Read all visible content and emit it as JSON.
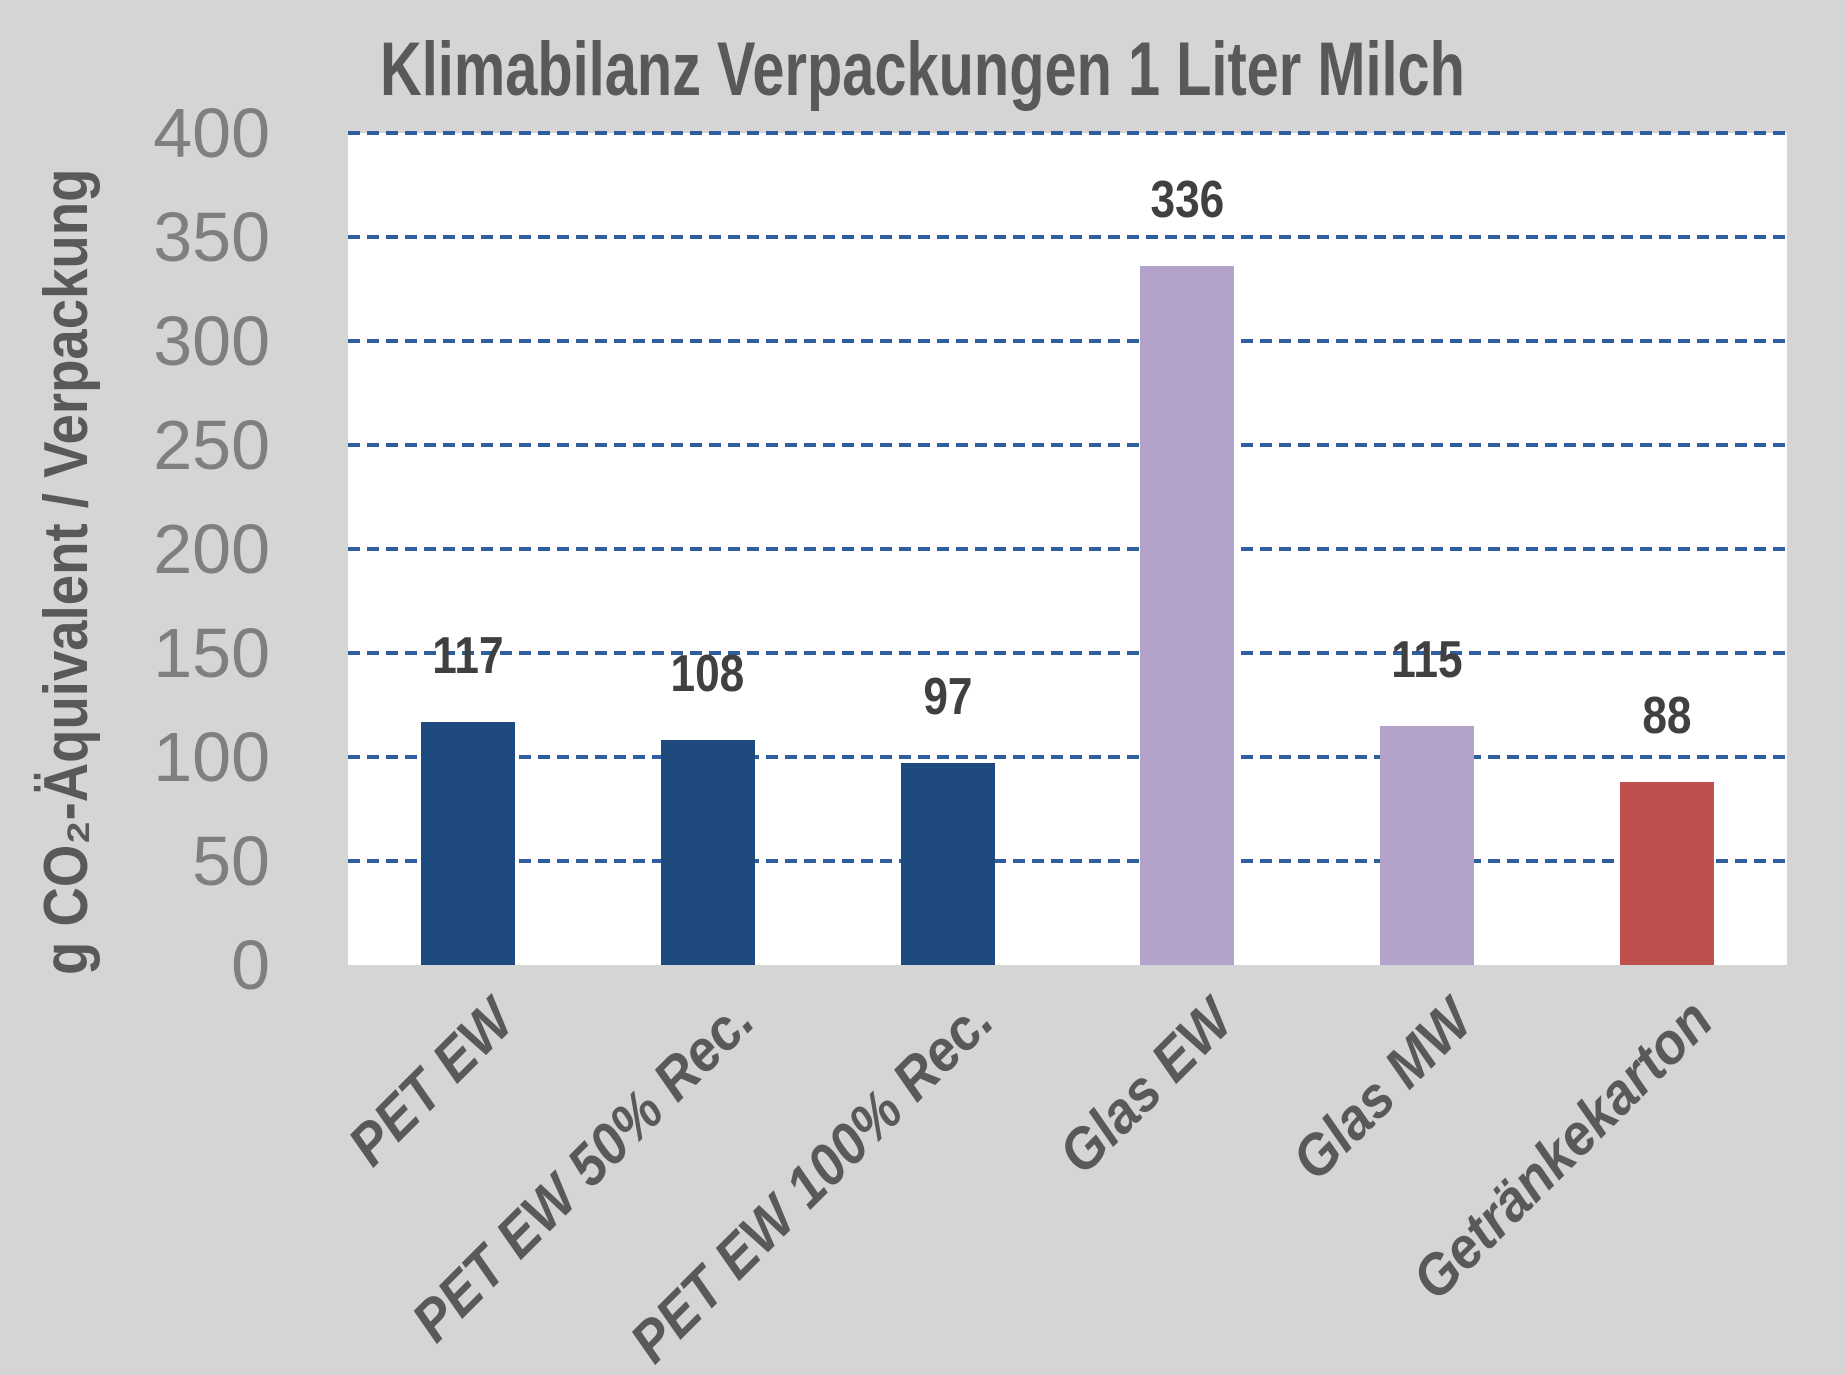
{
  "chart_data": {
    "type": "bar",
    "title": "Klimabilanz Verpackungen 1 Liter Milch",
    "ylabel": "g CO₂-Äquivalent / Verpackung",
    "xlabel": "",
    "categories": [
      "PET EW",
      "PET EW 50% Rec.",
      "PET EW 100% Rec.",
      "Glas EW",
      "Glas MW",
      "Getränkekarton"
    ],
    "values": [
      117,
      108,
      97,
      336,
      115,
      88
    ],
    "bar_colors": [
      "#1f4a7d",
      "#1f4a7d",
      "#1f4a7d",
      "#b3a2c9",
      "#b3a2c9",
      "#c0504d"
    ],
    "ylim": [
      0,
      400
    ],
    "yticks": [
      0,
      50,
      100,
      150,
      200,
      250,
      300,
      350,
      400
    ],
    "grid": {
      "style": "dashed",
      "color": "#2f5e9f",
      "orientation": "horizontal"
    },
    "legend": "none",
    "colors": {
      "background": "#d5d5d5",
      "plot_background": "#ffffff",
      "title_text": "#595959",
      "tick_text": "#7f7f7f",
      "value_label_text": "#404040",
      "category_label_text": "#595959"
    }
  }
}
